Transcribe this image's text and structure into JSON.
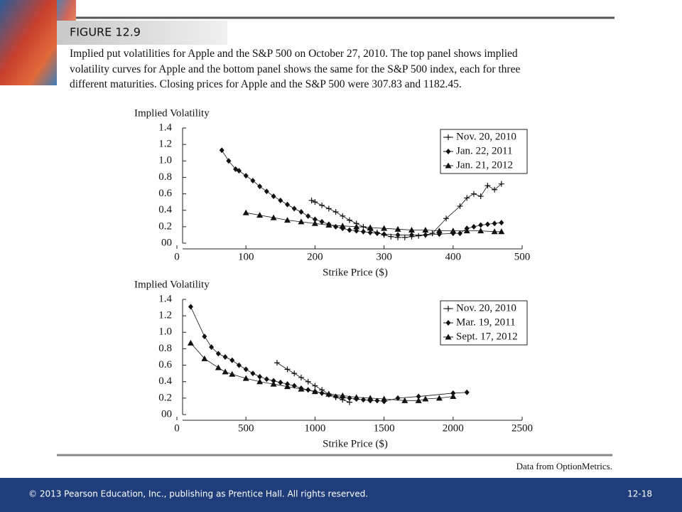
{
  "figure_label": "FIGURE 12.9",
  "caption": [
    "Implied put volatilities for Apple and the S&P 500 on October 27, 2010. The top panel shows implied",
    "volatility curves for Apple and the bottom panel shows the same for the S&P 500 index, each for three",
    "different maturities. Closing prices for Apple and the S&P 500 were 307.83 and 1182.45."
  ],
  "source": "Data from OptionMetrics.",
  "footer": {
    "copyright": "© 2013 Pearson Education, Inc., publishing as Prentice Hall. All rights reserved.",
    "page": "12-18"
  },
  "chart_data": [
    {
      "type": "line",
      "ylabel": "Implied Volatility",
      "xlabel": "Strike Price ($)",
      "legend": "top-right",
      "grid": false,
      "xlim": [
        0,
        500
      ],
      "xticks": [
        0,
        100,
        200,
        300,
        400,
        500
      ],
      "ylim": [
        0,
        1.4
      ],
      "yticks": [
        {
          "value": 0,
          "label": "00"
        },
        0.2,
        0.4,
        0.6,
        0.8,
        {
          "value": 1,
          "label": "1.0"
        },
        1.2,
        1.4
      ],
      "series": [
        {
          "name": "Nov. 20, 2010",
          "color": "#111111",
          "marker": "plus",
          "x": [
            195,
            200,
            210,
            220,
            230,
            240,
            250,
            260,
            270,
            280,
            290,
            300,
            310,
            320,
            330,
            340,
            350,
            360,
            370,
            390,
            410,
            420,
            430,
            440,
            450,
            460,
            470
          ],
          "values": [
            0.52,
            0.5,
            0.46,
            0.42,
            0.38,
            0.33,
            0.28,
            0.24,
            0.2,
            0.16,
            0.13,
            0.1,
            0.08,
            0.07,
            0.07,
            0.08,
            0.09,
            0.1,
            0.12,
            0.3,
            0.45,
            0.55,
            0.6,
            0.57,
            0.7,
            0.65,
            0.72
          ]
        },
        {
          "name": "Jan. 22, 2011",
          "color": "#111111",
          "marker": "diamond",
          "x": [
            65,
            75,
            85,
            90,
            100,
            110,
            120,
            130,
            140,
            150,
            160,
            170,
            180,
            190,
            200,
            210,
            220,
            230,
            240,
            250,
            260,
            270,
            280,
            290,
            300,
            320,
            340,
            360,
            380,
            400,
            410,
            420,
            430,
            440,
            450,
            460,
            470
          ],
          "values": [
            1.13,
            1.0,
            0.9,
            0.88,
            0.82,
            0.76,
            0.69,
            0.63,
            0.57,
            0.52,
            0.47,
            0.42,
            0.38,
            0.33,
            0.29,
            0.26,
            0.23,
            0.2,
            0.18,
            0.16,
            0.15,
            0.14,
            0.13,
            0.12,
            0.11,
            0.1,
            0.1,
            0.1,
            0.11,
            0.12,
            0.12,
            0.18,
            0.2,
            0.22,
            0.23,
            0.24,
            0.25
          ]
        },
        {
          "name": "Jan. 21, 2012",
          "color": "#111111",
          "marker": "triangle",
          "x": [
            100,
            120,
            140,
            160,
            180,
            200,
            220,
            240,
            260,
            280,
            300,
            320,
            340,
            360,
            380,
            400,
            420,
            440,
            460,
            470
          ],
          "values": [
            0.37,
            0.34,
            0.31,
            0.28,
            0.26,
            0.24,
            0.22,
            0.21,
            0.2,
            0.19,
            0.18,
            0.17,
            0.16,
            0.16,
            0.15,
            0.15,
            0.15,
            0.15,
            0.14,
            0.14
          ]
        }
      ]
    },
    {
      "type": "line",
      "ylabel": "Implied Volatility",
      "xlabel": "Strike Price ($)",
      "legend": "top-right",
      "grid": false,
      "xlim": [
        0,
        2500
      ],
      "xticks": [
        0,
        500,
        1000,
        1500,
        2000,
        2500
      ],
      "ylim": [
        0,
        1.4
      ],
      "yticks": [
        {
          "value": 0,
          "label": "00"
        },
        0.2,
        0.4,
        0.6,
        0.8,
        {
          "value": 1,
          "label": "1.0"
        },
        1.2,
        1.4
      ],
      "series": [
        {
          "name": "Nov. 20, 2010",
          "color": "#111111",
          "marker": "plus",
          "x": [
            725,
            800,
            850,
            900,
            950,
            1000,
            1050,
            1100,
            1150,
            1200,
            1250
          ],
          "values": [
            0.63,
            0.55,
            0.5,
            0.45,
            0.4,
            0.35,
            0.3,
            0.25,
            0.21,
            0.18,
            0.15
          ]
        },
        {
          "name": "Mar. 19, 2011",
          "color": "#111111",
          "marker": "diamond",
          "x": [
            100,
            200,
            250,
            300,
            350,
            400,
            450,
            500,
            550,
            600,
            650,
            700,
            750,
            800,
            850,
            900,
            950,
            1000,
            1050,
            1100,
            1150,
            1200,
            1250,
            1300,
            1350,
            1400,
            1450,
            1500,
            1600,
            1750,
            2000,
            2100
          ],
          "values": [
            1.31,
            0.95,
            0.82,
            0.74,
            0.7,
            0.66,
            0.6,
            0.55,
            0.5,
            0.46,
            0.43,
            0.41,
            0.39,
            0.37,
            0.35,
            0.32,
            0.3,
            0.28,
            0.26,
            0.24,
            0.22,
            0.21,
            0.2,
            0.19,
            0.18,
            0.17,
            0.17,
            0.16,
            0.2,
            0.22,
            0.26,
            0.27
          ]
        },
        {
          "name": "Sept. 17, 2012",
          "color": "#111111",
          "marker": "triangle",
          "x": [
            100,
            200,
            300,
            350,
            400,
            500,
            600,
            700,
            800,
            900,
            1000,
            1100,
            1200,
            1300,
            1400,
            1500,
            1650,
            1750,
            1800,
            1900,
            2000
          ],
          "values": [
            0.87,
            0.68,
            0.57,
            0.52,
            0.49,
            0.44,
            0.4,
            0.37,
            0.34,
            0.31,
            0.28,
            0.25,
            0.23,
            0.21,
            0.2,
            0.19,
            0.17,
            0.17,
            0.19,
            0.2,
            0.22
          ]
        }
      ]
    }
  ]
}
